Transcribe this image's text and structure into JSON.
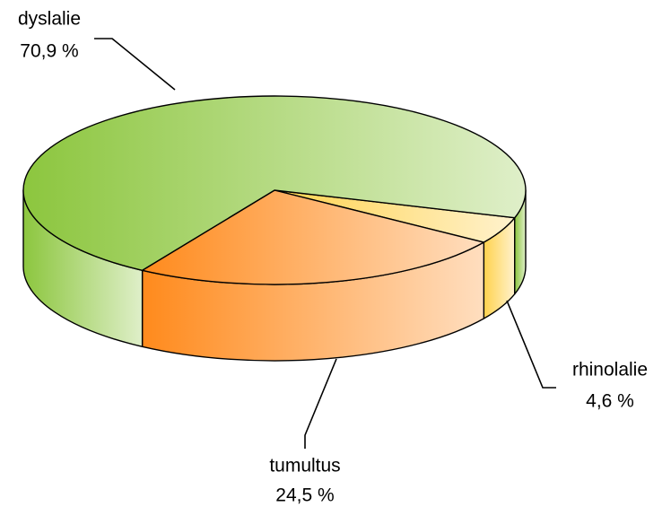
{
  "chart_data": {
    "type": "pie",
    "labels": [
      "dyslalie",
      "tumultus",
      "rhinolalie"
    ],
    "values": [
      70.9,
      24.5,
      4.6
    ],
    "value_labels": [
      "70,9 %",
      "24,5 %",
      "4,6 %"
    ],
    "colors": [
      "#8cc63e",
      "#ff8a1c",
      "#ffd24d"
    ]
  }
}
